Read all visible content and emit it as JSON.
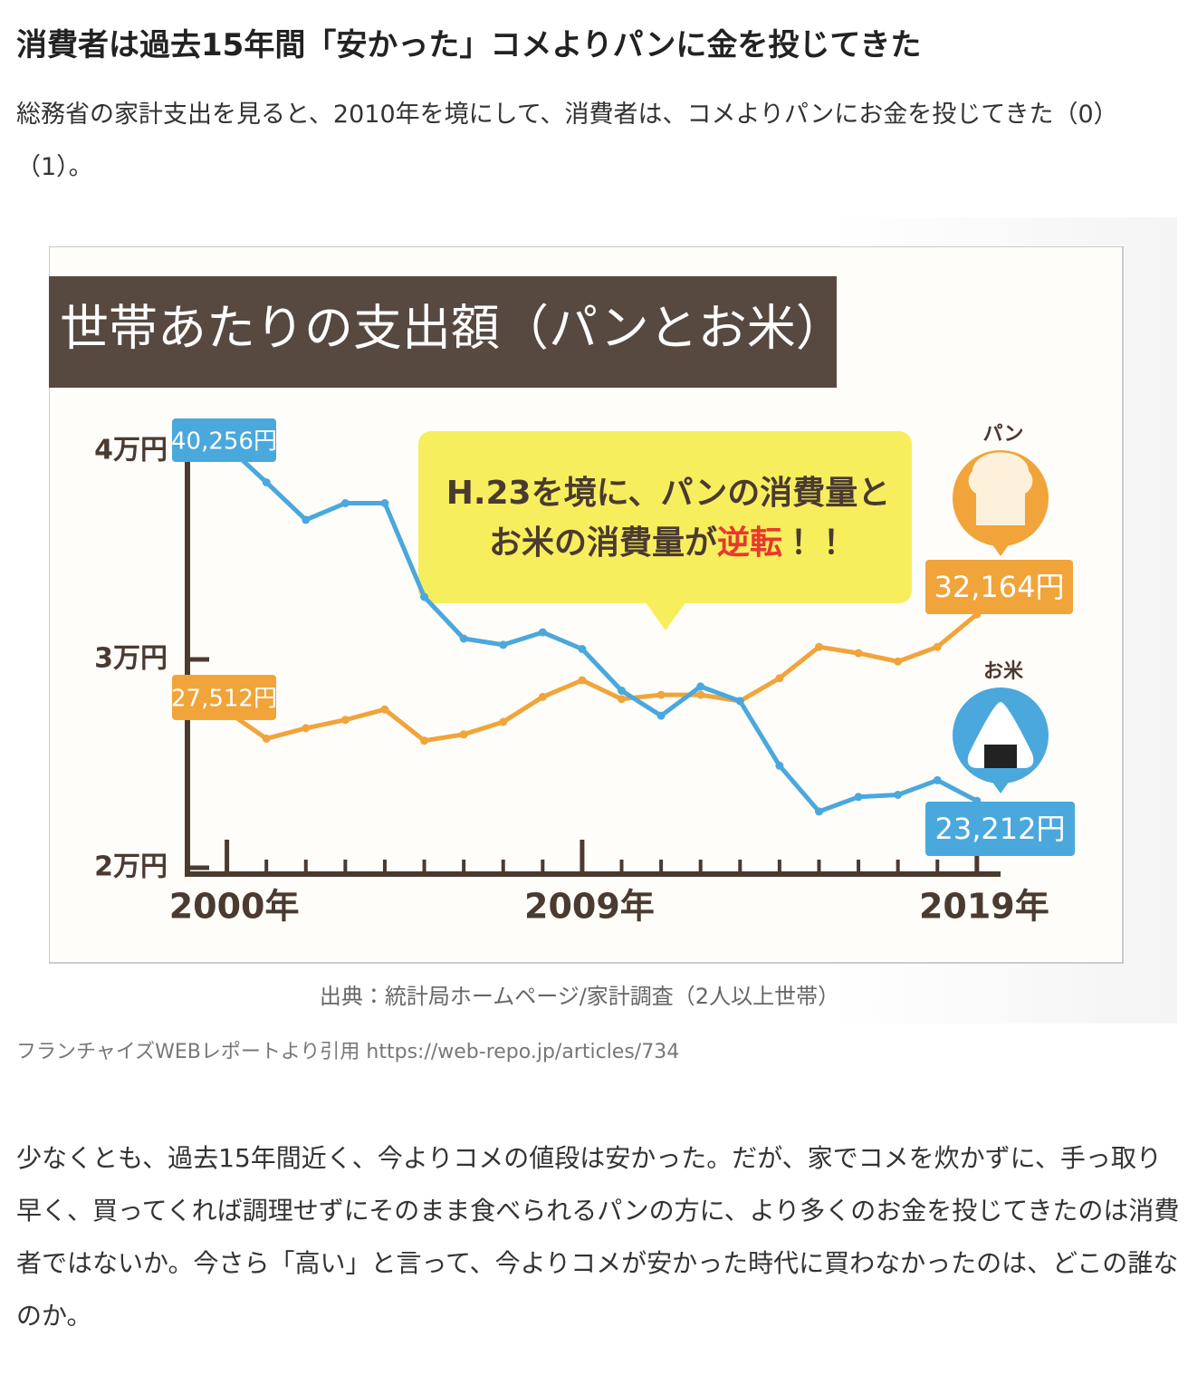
{
  "article": {
    "title": "消費者は過去15年間「安かった」コメよりパンに金を投じてきた",
    "intro": "総務省の家計支出を見ると、2010年を境にして、消費者は、コメよりパンにお金を投じてきた（0）（1）。",
    "figure_credit": "フランチャイズWEBレポートより引用 https://web-repo.jp/articles/734",
    "body": "少なくとも、過去15年間近く、今よりコメの値段は安かった。だが、家でコメを炊かずに、手っ取り早く、買ってくれば調理せずにそのまま食べられるパンの方に、より多くのお金を投じてきたのは消費者ではないか。今さら「高い」と言って、今よりコメが安かった時代に買わなかったのは、どこの誰なのか。"
  },
  "chart_data": {
    "type": "line",
    "title": "世帯あたりの支出額（パンとお米）",
    "callout": [
      "H.23を境に、パンの消費量と",
      "お米の消費量が",
      "逆転",
      "！！"
    ],
    "source": "出典：統計局ホームページ/家計調査（2人以上世帯）",
    "x": [
      2000,
      2001,
      2002,
      2003,
      2004,
      2005,
      2006,
      2007,
      2008,
      2009,
      2010,
      2011,
      2012,
      2013,
      2014,
      2015,
      2016,
      2017,
      2018,
      2019
    ],
    "xlim": [
      1999,
      2019.6
    ],
    "xticks": [
      {
        "value": 2000,
        "label": "2000年"
      },
      {
        "value": 2009,
        "label": "2009年"
      },
      {
        "value": 2019,
        "label": "2019年"
      }
    ],
    "ylim": [
      20000,
      40800
    ],
    "yticks": [
      {
        "value": 20000,
        "label": "2万円"
      },
      {
        "value": 30000,
        "label": "3万円"
      },
      {
        "value": 40000,
        "label": "4万円"
      }
    ],
    "series": [
      {
        "name": "パン",
        "color": "#f0a43a",
        "values": [
          27512,
          26200,
          26700,
          27100,
          27600,
          26100,
          26400,
          27000,
          28200,
          29000,
          28100,
          28300,
          28300,
          28000,
          29100,
          30600,
          30300,
          29900,
          30600,
          32164
        ],
        "value_labels": [
          "27,512円",
          null,
          null,
          null,
          null,
          null,
          null,
          null,
          null,
          null,
          null,
          null,
          null,
          null,
          null,
          null,
          null,
          null,
          null,
          "32,164円"
        ]
      },
      {
        "name": "お米",
        "color": "#4aa8dc",
        "values": [
          40256,
          38500,
          36700,
          37500,
          37500,
          33000,
          31000,
          30700,
          31300,
          30500,
          28500,
          27300,
          28700,
          28000,
          24900,
          22700,
          23400,
          23500,
          24200,
          23212
        ],
        "value_labels": [
          "40,256円",
          null,
          null,
          null,
          null,
          null,
          null,
          null,
          null,
          null,
          null,
          null,
          null,
          null,
          null,
          null,
          null,
          null,
          null,
          "23,212円"
        ]
      }
    ]
  }
}
